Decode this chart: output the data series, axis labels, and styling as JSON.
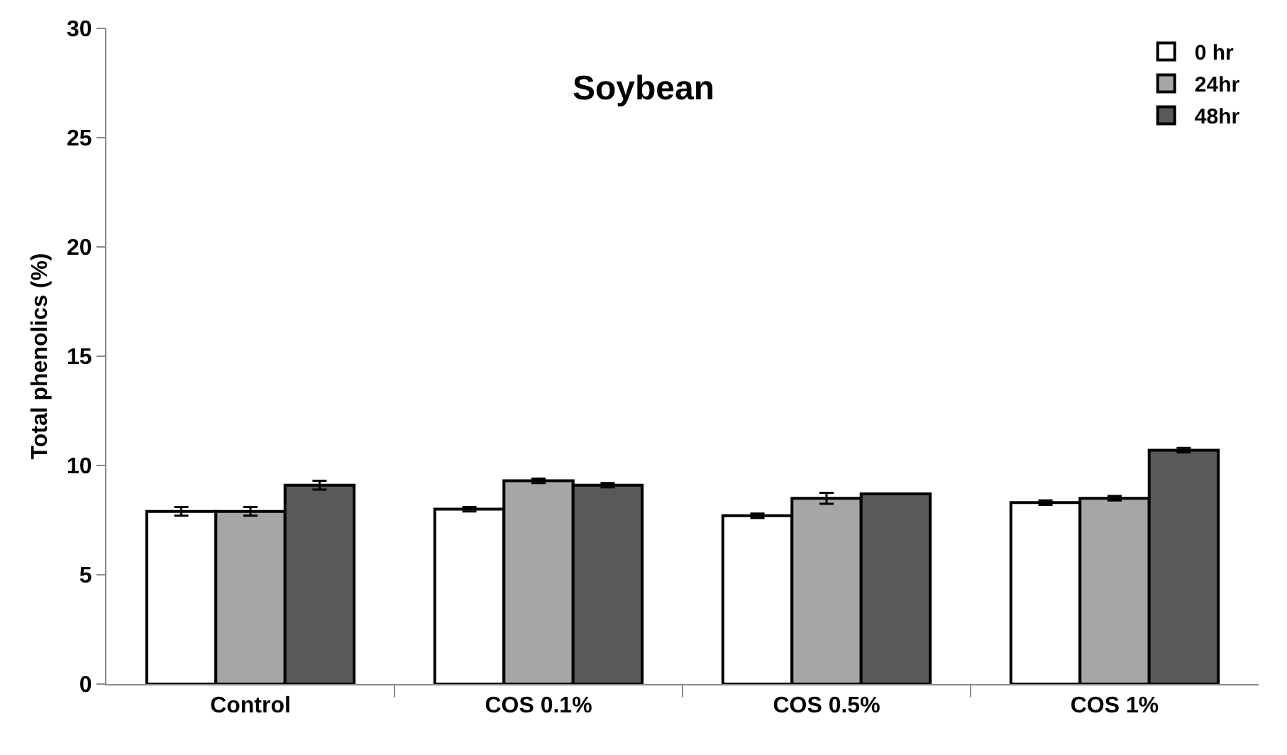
{
  "chart_data": {
    "type": "bar",
    "title": "Soybean",
    "ylabel": "Total phenolics (%)",
    "categories": [
      "Control",
      "COS 0.1%",
      "COS 0.5%",
      "COS 1%"
    ],
    "series": [
      {
        "name": "0 hr",
        "color": "#ffffff",
        "values": [
          7.9,
          8.0,
          7.7,
          8.3
        ],
        "errors": [
          0.2,
          0.1,
          0.1,
          0.1
        ]
      },
      {
        "name": "24hr",
        "color": "#a6a6a6",
        "values": [
          7.9,
          9.3,
          8.5,
          8.5
        ],
        "errors": [
          0.2,
          0.1,
          0.25,
          0.1
        ]
      },
      {
        "name": "48hr",
        "color": "#595959",
        "values": [
          9.1,
          9.1,
          8.7,
          10.7
        ],
        "errors": [
          0.2,
          0.1,
          null,
          0.1
        ]
      }
    ],
    "ylim": [
      0,
      30
    ],
    "yticks": [
      0,
      5,
      10,
      15,
      20,
      25,
      30
    ],
    "grid": false,
    "legend": "top right"
  }
}
